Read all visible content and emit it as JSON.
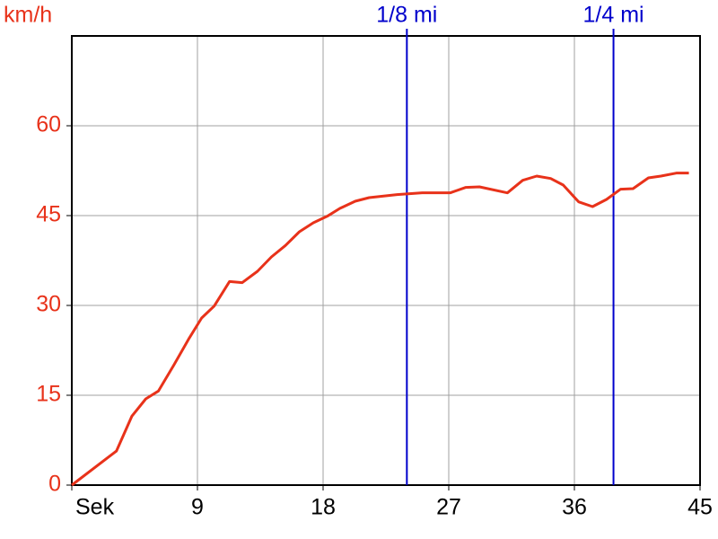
{
  "chart_data": {
    "type": "line",
    "y_label": "km/h",
    "x": [
      0,
      3.2,
      4.3,
      5.3,
      6.2,
      7.3,
      8.4,
      9.3,
      10.2,
      11.3,
      12.2,
      13.3,
      14.3,
      15.3,
      16.3,
      17.3,
      18.3,
      19.2,
      20.3,
      21.3,
      23.3,
      25.1,
      27.1,
      28.2,
      29.2,
      31.2,
      32.3,
      33.3,
      34.3,
      35.2,
      36.3,
      37.3,
      38.3,
      39.3,
      40.2,
      41.3,
      42.2,
      43.3,
      44.2
    ],
    "series": [
      {
        "color": "#e8321a",
        "values": [
          0,
          5.7,
          11.5,
          14.4,
          15.7,
          20.0,
          24.5,
          27.9,
          29.9,
          34.0,
          33.8,
          35.7,
          38.1,
          40.0,
          42.3,
          43.8,
          44.9,
          46.2,
          47.4,
          48.0,
          48.5,
          48.8,
          48.8,
          49.7,
          49.8,
          48.8,
          50.9,
          51.6,
          51.2,
          50.1,
          47.3,
          46.5,
          47.7,
          49.4,
          49.5,
          51.3,
          51.6,
          52.1,
          52.1
        ]
      }
    ],
    "xlim": [
      0,
      45
    ],
    "xticks": [
      {
        "value": 0,
        "label": "Sek"
      },
      9,
      18,
      27,
      36,
      45
    ],
    "ylim": [
      0,
      75
    ],
    "yticks": [
      0,
      15,
      30,
      45,
      60
    ],
    "grid": true,
    "markers": [
      {
        "label": "1/8 mi",
        "x": 24.0,
        "color": "#0000cc"
      },
      {
        "label": "1/4 mi",
        "x": 38.8,
        "color": "#0000cc"
      }
    ]
  }
}
